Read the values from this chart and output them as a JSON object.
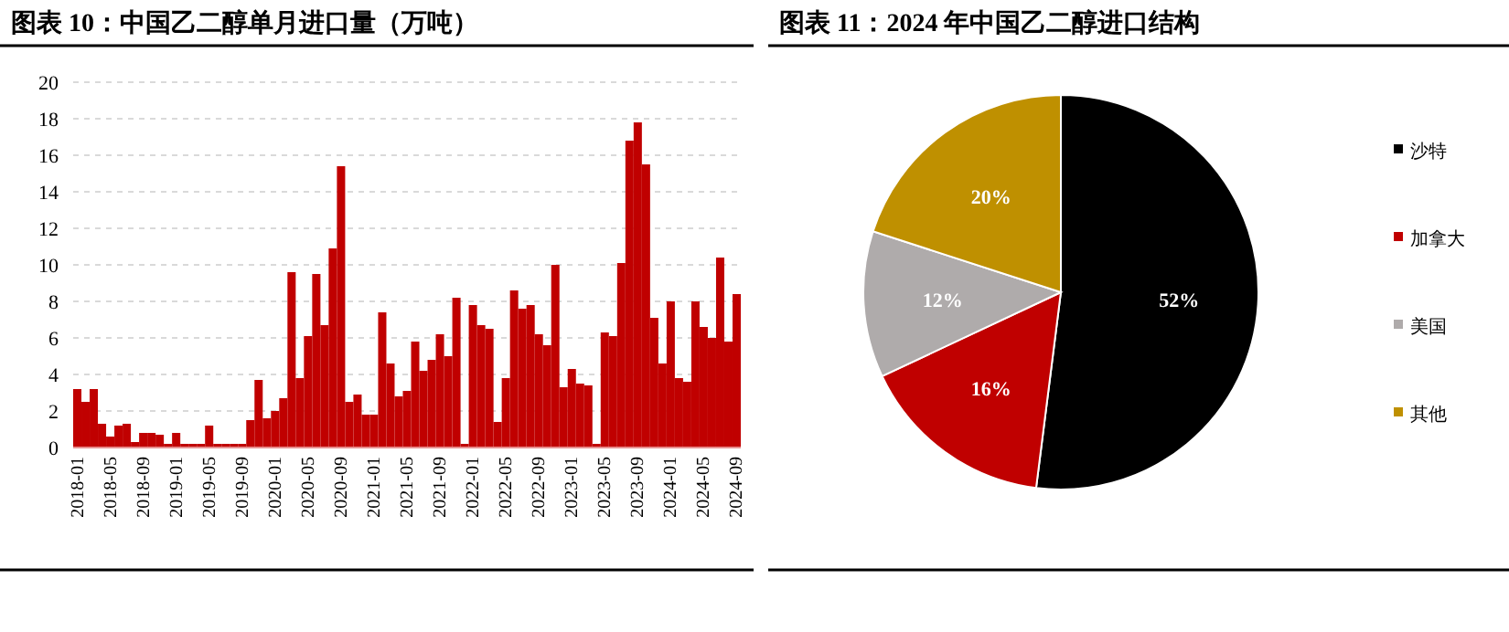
{
  "chart_data": [
    {
      "type": "bar",
      "title": "图表 10：中国乙二醇单月进口量（万吨）",
      "categories": [
        "2018-01",
        null,
        null,
        null,
        "2018-05",
        null,
        null,
        null,
        "2018-09",
        null,
        null,
        null,
        "2019-01",
        null,
        null,
        null,
        "2019-05",
        null,
        null,
        null,
        "2019-09",
        null,
        null,
        null,
        "2020-01",
        null,
        null,
        null,
        "2020-05",
        null,
        null,
        null,
        "2020-09",
        null,
        null,
        null,
        "2021-01",
        null,
        null,
        null,
        "2021-05",
        null,
        null,
        null,
        "2021-09",
        null,
        null,
        null,
        "2022-01",
        null,
        null,
        null,
        "2022-05",
        null,
        null,
        null,
        "2022-09",
        null,
        null,
        null,
        "2023-01",
        null,
        null,
        null,
        "2023-05",
        null,
        null,
        null,
        "2023-09",
        null,
        null,
        null,
        "2024-01",
        null,
        null,
        null,
        "2024-05",
        null,
        null,
        null,
        "2024-09"
      ],
      "values": [
        3.2,
        2.5,
        3.2,
        1.3,
        0.6,
        1.2,
        1.3,
        0.3,
        0.8,
        0.8,
        0.7,
        0.2,
        0.8,
        0.2,
        0.2,
        0.2,
        1.2,
        0.2,
        0.2,
        0.2,
        0.2,
        1.5,
        3.7,
        1.6,
        2.0,
        2.7,
        9.6,
        3.8,
        6.1,
        9.5,
        6.7,
        10.9,
        15.4,
        2.5,
        2.9,
        1.8,
        1.8,
        7.4,
        4.6,
        2.8,
        3.1,
        5.8,
        4.2,
        4.8,
        6.2,
        5.0,
        8.2,
        0.2,
        7.8,
        6.7,
        6.5,
        1.4,
        3.8,
        8.6,
        7.6,
        7.8,
        6.2,
        5.6,
        10.0,
        3.3,
        4.3,
        3.5,
        3.4,
        0.2,
        6.3,
        6.1,
        10.1,
        16.8,
        17.8,
        15.5,
        7.1,
        4.6,
        8.0,
        3.8,
        3.6,
        8.0,
        6.6,
        6.0,
        10.4,
        5.8,
        8.4
      ],
      "color": "#c00000",
      "ylim": [
        0,
        20
      ],
      "yticks": [
        0,
        2,
        4,
        6,
        8,
        10,
        12,
        14,
        16,
        18,
        20
      ],
      "grid": "y"
    },
    {
      "type": "pie",
      "title": "图表 11：2024 年中国乙二醇进口结构",
      "categories": [
        "沙特",
        "加拿大",
        "美国",
        "其他"
      ],
      "values": [
        52,
        16,
        12,
        20
      ],
      "colors": [
        "#000000",
        "#c00000",
        "#afabab",
        "#bf9000"
      ],
      "value_labels": [
        "52%",
        "16%",
        "12%",
        "20%"
      ],
      "legend": "right"
    }
  ]
}
